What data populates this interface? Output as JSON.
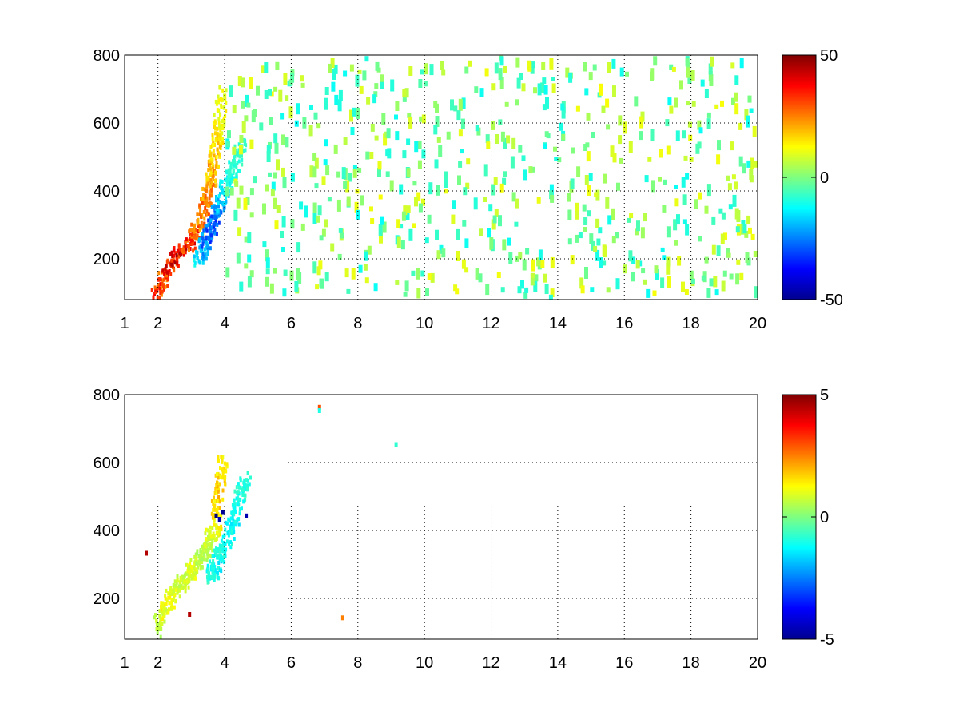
{
  "chart_data": [
    {
      "type": "heatmap",
      "title": "",
      "xlabel": "",
      "ylabel": "",
      "xlim": [
        1,
        20
      ],
      "ylim": [
        80,
        800
      ],
      "x_ticks": [
        1,
        2,
        4,
        6,
        8,
        10,
        12,
        14,
        16,
        18,
        20
      ],
      "x_tick_labels": [
        "1",
        "2",
        "4",
        "6",
        "8",
        "10",
        "12",
        "14",
        "16",
        "18",
        "20"
      ],
      "y_ticks": [
        200,
        400,
        600,
        800
      ],
      "y_tick_labels": [
        "200",
        "400",
        "600",
        "800"
      ],
      "grid": true,
      "colormap": "jet",
      "colorbar": {
        "range": [
          -50,
          50
        ],
        "ticks": [
          -50,
          0,
          50
        ],
        "tick_labels": [
          "-50",
          "0",
          "50"
        ]
      },
      "features": [
        {
          "description": "positive ridge",
          "points": [
            [
              1.9,
              100,
              35
            ],
            [
              2.2,
              160,
              38
            ],
            [
              2.5,
              220,
              45
            ],
            [
              2.9,
              245,
              40
            ],
            [
              3.2,
              300,
              30
            ],
            [
              3.4,
              380,
              28
            ],
            [
              3.6,
              450,
              25
            ],
            [
              3.7,
              520,
              20
            ],
            [
              3.8,
              600,
              15
            ],
            [
              3.9,
              700,
              12
            ]
          ]
        },
        {
          "description": "negative ridge",
          "points": [
            [
              3.2,
              200,
              -15
            ],
            [
              3.4,
              260,
              -30
            ],
            [
              3.6,
              300,
              -35
            ],
            [
              3.8,
              360,
              -25
            ],
            [
              4.0,
              420,
              -15
            ],
            [
              4.3,
              480,
              -10
            ],
            [
              4.5,
              560,
              -8
            ]
          ]
        },
        {
          "description": "sparse scattered values",
          "x_range": [
            4,
            20
          ],
          "value_range": [
            -12,
            12
          ]
        }
      ]
    },
    {
      "type": "heatmap",
      "title": "",
      "xlabel": "",
      "ylabel": "",
      "xlim": [
        1,
        20
      ],
      "ylim": [
        80,
        800
      ],
      "x_ticks": [
        1,
        2,
        4,
        6,
        8,
        10,
        12,
        14,
        16,
        18,
        20
      ],
      "x_tick_labels": [
        "1",
        "2",
        "4",
        "6",
        "8",
        "10",
        "12",
        "14",
        "16",
        "18",
        "20"
      ],
      "y_ticks": [
        200,
        400,
        600,
        800
      ],
      "y_tick_labels": [
        "200",
        "400",
        "600",
        "800"
      ],
      "grid": true,
      "colormap": "jet",
      "colorbar": {
        "range": [
          -5,
          5
        ],
        "ticks": [
          -5,
          0,
          5
        ],
        "tick_labels": [
          "-5",
          "0",
          "5"
        ]
      },
      "features": [
        {
          "description": "positive ridge",
          "points": [
            [
              1.9,
              110,
              0.5
            ],
            [
              2.2,
              180,
              1.5
            ],
            [
              2.5,
              230,
              1.0
            ],
            [
              2.8,
              260,
              0.8
            ],
            [
              3.0,
              290,
              1.2
            ],
            [
              3.3,
              330,
              0.5
            ],
            [
              3.5,
              370,
              0.8
            ],
            [
              3.7,
              420,
              1.5
            ],
            [
              3.8,
              520,
              2.0
            ],
            [
              3.9,
              620,
              1.5
            ]
          ]
        },
        {
          "description": "negative ridge",
          "points": [
            [
              3.5,
              260,
              -1.0
            ],
            [
              3.7,
              300,
              -1.5
            ],
            [
              3.9,
              350,
              -1.0
            ],
            [
              4.2,
              420,
              -1.5
            ],
            [
              4.4,
              500,
              -1.2
            ],
            [
              4.6,
              560,
              -1.0
            ]
          ]
        },
        {
          "description": "strong negative spot",
          "points": [
            [
              3.7,
              450,
              -5
            ],
            [
              3.8,
              440,
              -4.5
            ],
            [
              3.9,
              460,
              -4.8
            ],
            [
              4.6,
              450,
              -4.5
            ]
          ]
        },
        {
          "description": "isolated points",
          "points": [
            [
              6.8,
              770,
              3
            ],
            [
              6.8,
              760,
              -1
            ],
            [
              7.5,
              150,
              2.5
            ],
            [
              9.1,
              660,
              -0.8
            ],
            [
              1.6,
              340,
              4.5
            ],
            [
              2.9,
              160,
              4.5
            ]
          ]
        }
      ]
    }
  ]
}
